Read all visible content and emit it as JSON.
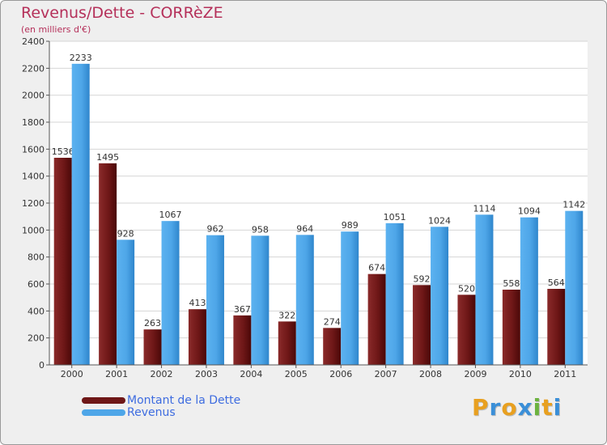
{
  "chart_data": {
    "type": "bar",
    "title": "Revenus/Dette - CORRèZE",
    "subtitle": "(en milliers d'€)",
    "categories": [
      "2000",
      "2001",
      "2002",
      "2003",
      "2004",
      "2005",
      "2006",
      "2007",
      "2008",
      "2009",
      "2010",
      "2011"
    ],
    "series": [
      {
        "name": "Montant de la Dette",
        "color": "#6e1717",
        "values": [
          1536,
          1495,
          263,
          413,
          367,
          322,
          274,
          674,
          592,
          520,
          558,
          564
        ]
      },
      {
        "name": "Revenus",
        "color": "#4ea6e8",
        "values": [
          2233,
          928,
          1067,
          962,
          958,
          964,
          989,
          1051,
          1024,
          1114,
          1094,
          1142
        ]
      }
    ],
    "ylim": [
      0,
      2400
    ],
    "yticks": [
      0,
      200,
      400,
      600,
      800,
      1000,
      1200,
      1400,
      1600,
      1800,
      2000,
      2200,
      2400
    ],
    "grid": true,
    "legend": "bottom-left"
  },
  "logo": {
    "letters": [
      "P",
      "r",
      "o",
      "x",
      "i",
      "t",
      "i"
    ],
    "colors": [
      "#e8a020",
      "#3a8fd8",
      "#e8a020",
      "#3a8fd8",
      "#6cb33f",
      "#e8a020",
      "#3a8fd8"
    ]
  }
}
